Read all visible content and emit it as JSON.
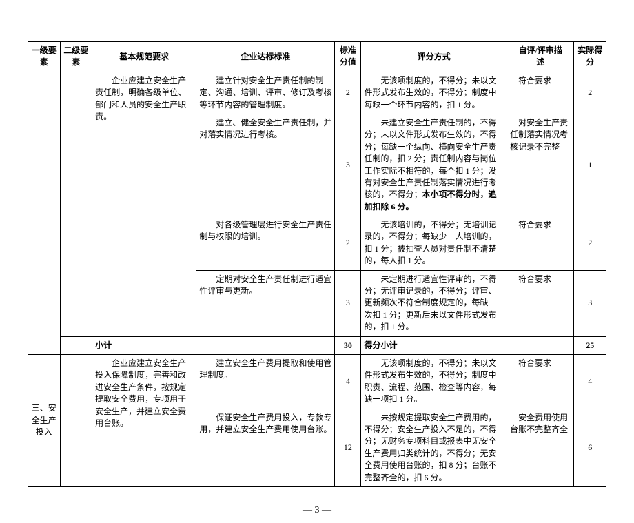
{
  "header": {
    "c1": "一级要素",
    "c2": "二级要素",
    "c3": "基本规范要求",
    "c4": "企业达标标准",
    "c5": "标准分值",
    "c6": "评分方式",
    "c7": "自评/评审描　　述",
    "c8": "实际得分"
  },
  "rows": [
    {
      "c3": "　　企业应建立安全生产责任制，明确各级单位、部门和人员的安全生产职责。",
      "c4": "　　建立针对安全生产责任制的制定、沟通、培训、评审、修订及考核等环节内容的管理制度。",
      "c5": "2",
      "c6": "　　无该项制度的，不得分；未以文件形式发布生效的，不得分；制度中每缺一个环节内容的，扣 1 分。",
      "c7": "符合要求",
      "c8": "2"
    },
    {
      "c4": "　　建立、健全安全生产责任制，并对落实情况进行考核。",
      "c5": "3",
      "c6a": "　　未建立安全生产责任制的，不得分；未以文件形式发布生效的，不得分；每缺一个纵向、横向安全生产责任制的，扣 2 分；责任制内容与岗位工作实际不相符的，每个扣 1 分；没有对安全生产责任制落实情况进行考核的，不得分；",
      "c6b": "本小项不得分时，追加扣除 6 分。",
      "c7": "对安全生产责任制落实情况考核记录不完整",
      "c8": "1"
    },
    {
      "c4": "　　对各级管理层进行安全生产责任制与权限的培训。",
      "c5": "2",
      "c6": "　　无该培训的，不得分；无培训记录的，不得分；每缺少一人培训的，扣 1 分；被抽查人员对责任制不清楚的，每人扣 1 分。",
      "c7": "符合要求",
      "c8": "2"
    },
    {
      "c4": "　　定期对安全生产责任制进行适宜性评审与更新。",
      "c5": "3",
      "c6": "　　未定期进行适宜性评审的，不得分；无评审记录的，不得分；评审、更新频次不符合制度规定的，每缺一次扣 1 分；更新后未以文件形式发布的，扣 1 分。",
      "c7": "符合要求",
      "c8": "3"
    }
  ],
  "subtotal": {
    "label": "小计",
    "c5": "30",
    "c6": "得分小计",
    "c8": "25"
  },
  "section2": {
    "c1": "三、安全生产投入",
    "rows": [
      {
        "c3": "　　企业应建立安全生产投入保障制度，完善和改进安全生产条件，按规定提取安全费用，专项用于安全生产，并建立安全费用台账。",
        "c4": "　　建立安全生产费用提取和使用管理制度。",
        "c5": "4",
        "c6": "　　无该项制度的，不得分；未以文件形式发布生效的，不得分；制度中职责、流程、范围、检查等内容，每缺一项扣 1 分。",
        "c7": "符合要求",
        "c8": "4"
      },
      {
        "c4": "　　保证安全生产费用投入，专款专用，并建立安全生产费用使用台账。",
        "c5": "12",
        "c6": "　　未按规定提取安全生产费用的，不得分；安全生产投入不足的，不得分；无财务专项科目或报表中无安全生产费用归类统计的，不得分；无安全费用使用台账的，扣 8 分；台账不完整齐全的，扣 6 分。",
        "c7": "安全费用使用台账不完整齐全",
        "c8": "6"
      }
    ]
  },
  "pagenum": "— 3 —"
}
